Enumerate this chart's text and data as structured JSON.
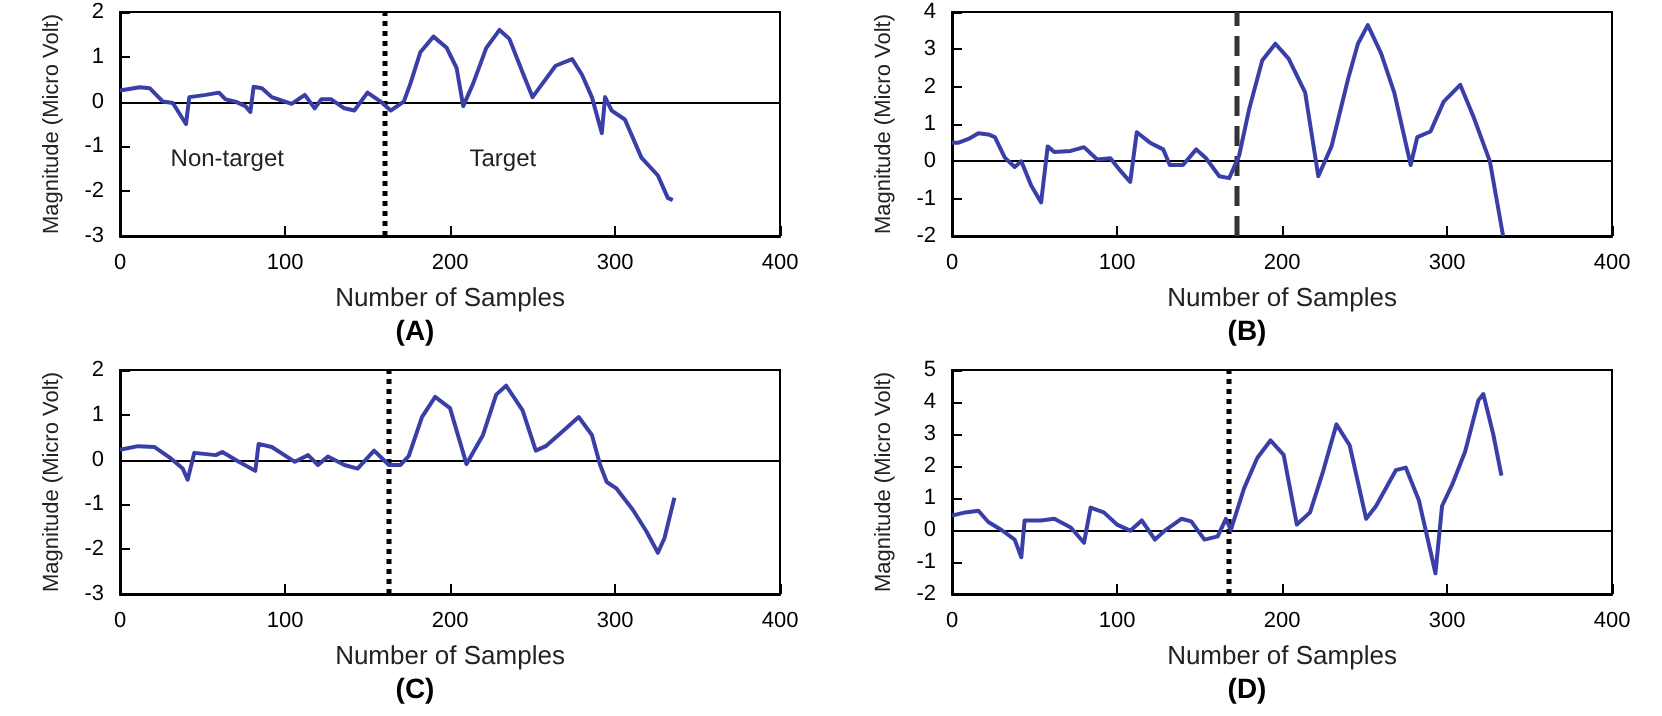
{
  "chart_data": [
    {
      "type": "line",
      "title": "(A)",
      "xlabel": "Number of Samples",
      "ylabel": "Magnitude (Micro Volt)",
      "color": "#3a3fa8",
      "xlim": [
        0,
        400
      ],
      "xticks": [
        0,
        100,
        200,
        300,
        400
      ],
      "ylim": [
        -3,
        2
      ],
      "yticks": [
        -3,
        -2,
        -1,
        0,
        1,
        2
      ],
      "x": [
        0,
        12,
        18,
        26,
        32,
        40,
        42,
        52,
        60,
        64,
        70,
        76,
        79,
        81,
        86,
        92,
        104,
        112,
        118,
        122,
        128,
        136,
        142,
        150,
        154,
        158,
        164,
        172,
        176,
        182,
        190,
        198,
        204,
        208,
        214,
        222,
        230,
        236,
        244,
        250,
        254,
        264,
        274,
        280,
        286,
        292,
        294,
        298,
        306,
        316,
        326,
        332,
        335
      ],
      "values": [
        0.25,
        0.32,
        0.3,
        0,
        -0.03,
        -0.5,
        0.1,
        0.15,
        0.2,
        0.05,
        0,
        -0.1,
        -0.23,
        0.33,
        0.3,
        0.1,
        -0.05,
        0.15,
        -0.15,
        0.05,
        0.05,
        -0.15,
        -0.2,
        0.2,
        0.1,
        0,
        -0.2,
        0,
        0.4,
        1.1,
        1.45,
        1.2,
        0.75,
        -0.1,
        0.4,
        1.2,
        1.6,
        1.4,
        0.65,
        0.1,
        0.3,
        0.8,
        0.95,
        0.6,
        0.1,
        -0.7,
        0.1,
        -0.2,
        -0.4,
        -1.25,
        -1.65,
        -2.15,
        -2.2
      ],
      "ref_lines": [
        {
          "axis": "y",
          "value": 0,
          "color": "#000000",
          "line_style": "solid"
        },
        {
          "axis": "x",
          "value": 160,
          "color": "#000000",
          "line_style": "dotted"
        }
      ],
      "annotations": [
        "Non-target",
        "Target"
      ]
    },
    {
      "type": "line",
      "title": "(B)",
      "xlabel": "Number of Samples",
      "ylabel": "Magnitude (Micro Volt)",
      "color": "#3a3fa8",
      "xlim": [
        0,
        400
      ],
      "xticks": [
        0,
        100,
        200,
        300,
        400
      ],
      "ylim": [
        -2,
        4
      ],
      "yticks": [
        -2,
        -1,
        0,
        1,
        2,
        3,
        4
      ],
      "x": [
        0,
        4,
        10,
        16,
        22,
        26,
        32,
        38,
        42,
        48,
        54,
        58,
        62,
        72,
        80,
        88,
        96,
        102,
        108,
        112,
        120,
        128,
        132,
        140,
        148,
        154,
        162,
        168,
        174,
        180,
        188,
        196,
        204,
        214,
        222,
        230,
        240,
        246,
        252,
        260,
        268,
        278,
        282,
        290,
        298,
        308,
        316,
        326,
        334
      ],
      "values": [
        0.5,
        0.5,
        0.6,
        0.75,
        0.72,
        0.65,
        0.1,
        -0.15,
        0,
        -0.65,
        -1.1,
        0.4,
        0.25,
        0.28,
        0.38,
        0.05,
        0.08,
        -0.25,
        -0.55,
        0.78,
        0.5,
        0.32,
        -0.1,
        -0.1,
        0.32,
        0.08,
        -0.4,
        -0.45,
        0.15,
        1.38,
        2.7,
        3.15,
        2.75,
        1.85,
        -0.4,
        0.4,
        2.2,
        3.15,
        3.65,
        2.9,
        1.85,
        -0.1,
        0.65,
        0.8,
        1.6,
        2.05,
        1.2,
        0,
        -2
      ],
      "ref_lines": [
        {
          "axis": "y",
          "value": 0,
          "color": "#000000",
          "line_style": "solid"
        },
        {
          "axis": "x",
          "value": 172,
          "color": "#333333",
          "line_style": "dashed"
        }
      ]
    },
    {
      "type": "line",
      "title": "(C)",
      "xlabel": "Number of Samples",
      "ylabel": "Magnitude (Micro Volt)",
      "color": "#3a3fa8",
      "xlim": [
        0,
        400
      ],
      "xticks": [
        0,
        100,
        200,
        300,
        400
      ],
      "ylim": [
        -3,
        2
      ],
      "yticks": [
        -3,
        -2,
        -1,
        0,
        1,
        2
      ],
      "x": [
        0,
        11,
        21,
        31,
        38,
        41,
        45,
        58,
        62,
        72,
        82,
        84,
        92,
        106,
        114,
        120,
        126,
        136,
        144,
        154,
        163,
        170,
        175,
        183,
        191,
        200,
        210,
        220,
        228,
        234,
        244,
        252,
        258,
        268,
        278,
        286,
        291,
        295,
        301,
        311,
        319,
        326,
        330,
        336
      ],
      "values": [
        0.22,
        0.3,
        0.28,
        0.02,
        -0.2,
        -0.45,
        0.15,
        0.1,
        0.17,
        -0.05,
        -0.25,
        0.35,
        0.28,
        -0.05,
        0.1,
        -0.12,
        0.07,
        -0.12,
        -0.2,
        0.2,
        -0.12,
        -0.12,
        0.08,
        0.95,
        1.4,
        1.15,
        -0.1,
        0.55,
        1.45,
        1.65,
        1.1,
        0.2,
        0.3,
        0.62,
        0.95,
        0.55,
        -0.12,
        -0.5,
        -0.65,
        -1.13,
        -1.6,
        -2.08,
        -1.75,
        -0.85
      ],
      "ref_lines": [
        {
          "axis": "y",
          "value": 0,
          "color": "#000000",
          "line_style": "solid"
        },
        {
          "axis": "x",
          "value": 163,
          "color": "#000000",
          "line_style": "dotted"
        }
      ]
    },
    {
      "type": "line",
      "title": "(D)",
      "xlabel": "Number of Samples",
      "ylabel": "Magnitude (Micro Volt)",
      "color": "#3a3fa8",
      "xlim": [
        0,
        400
      ],
      "xticks": [
        0,
        100,
        200,
        300,
        400
      ],
      "ylim": [
        -2,
        5
      ],
      "yticks": [
        -2,
        -1,
        0,
        1,
        2,
        3,
        4,
        5
      ],
      "x": [
        0,
        8,
        16,
        22,
        30,
        38,
        42,
        44,
        54,
        62,
        72,
        80,
        84,
        92,
        100,
        108,
        115,
        123,
        129,
        139,
        145,
        153,
        161,
        166,
        169,
        177,
        185,
        193,
        201,
        209,
        217,
        225,
        233,
        241,
        251,
        257,
        269,
        275,
        283,
        293,
        297,
        303,
        311,
        319,
        322,
        328,
        333
      ],
      "values": [
        0.45,
        0.55,
        0.6,
        0.25,
        0,
        -0.3,
        -0.85,
        0.3,
        0.3,
        0.35,
        0.08,
        -0.4,
        0.7,
        0.55,
        0.17,
        -0.02,
        0.3,
        -0.3,
        -0.02,
        0.35,
        0.27,
        -0.3,
        -0.2,
        0.35,
        0,
        1.3,
        2.25,
        2.8,
        2.35,
        0.17,
        0.55,
        1.85,
        3.3,
        2.65,
        0.35,
        0.75,
        1.87,
        1.95,
        0.92,
        -1.35,
        0.75,
        1.4,
        2.45,
        4.05,
        4.25,
        3,
        1.7
      ],
      "ref_lines": [
        {
          "axis": "y",
          "value": 0,
          "color": "#000000",
          "line_style": "solid"
        },
        {
          "axis": "x",
          "value": 168,
          "color": "#000000",
          "line_style": "dotted"
        }
      ]
    }
  ]
}
